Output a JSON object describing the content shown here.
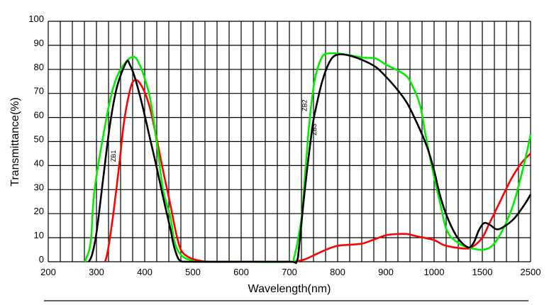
{
  "chart_data": {
    "type": "line",
    "title": "",
    "xlabel": "Wavelength(nm)",
    "ylabel": "Transmittance(%)",
    "xlim": [
      200,
      2500
    ],
    "ylim": [
      0,
      100
    ],
    "x_scale": "piecewise: linear 200-1000, compressed 1000-1500 and 1500-2500",
    "x_ticks": [
      200,
      300,
      400,
      500,
      600,
      700,
      800,
      900,
      1000,
      1500,
      2500
    ],
    "x_tick_labels": [
      "200",
      "300",
      "400",
      "500",
      "600",
      "700",
      "800",
      "900",
      "1000",
      "1500",
      "2500"
    ],
    "y_ticks": [
      0,
      10,
      20,
      30,
      40,
      50,
      60,
      70,
      80,
      90,
      100
    ],
    "y_tick_labels": [
      "0",
      "10",
      "20",
      "30",
      "40",
      "50",
      "60",
      "70",
      "80",
      "90",
      "100"
    ],
    "grid": true,
    "series": [
      {
        "name": "ZB1",
        "color": "#ff0000",
        "points": [
          [
            318,
            0
          ],
          [
            324,
            5
          ],
          [
            335,
            20
          ],
          [
            347,
            40
          ],
          [
            357,
            58
          ],
          [
            368,
            70
          ],
          [
            376,
            75
          ],
          [
            387,
            75
          ],
          [
            401,
            70
          ],
          [
            412,
            63
          ],
          [
            426,
            50
          ],
          [
            438,
            38
          ],
          [
            453,
            24
          ],
          [
            465,
            12
          ],
          [
            475,
            5
          ],
          [
            490,
            2
          ],
          [
            512,
            0.5
          ],
          [
            534,
            0
          ],
          [
            600,
            0
          ],
          [
            700,
            0
          ],
          [
            710,
            0
          ],
          [
            732,
            1
          ],
          [
            754,
            3
          ],
          [
            776,
            5
          ],
          [
            797,
            6.5
          ],
          [
            819,
            7
          ],
          [
            850,
            7.5
          ],
          [
            872,
            9
          ],
          [
            900,
            11
          ],
          [
            922,
            11.5
          ],
          [
            944,
            11.5
          ],
          [
            966,
            10.5
          ],
          [
            1000,
            9
          ],
          [
            1096,
            7
          ],
          [
            1206,
            6
          ],
          [
            1316,
            5.5
          ],
          [
            1390,
            6
          ],
          [
            1500,
            10
          ],
          [
            1647,
            16
          ],
          [
            1868,
            25
          ],
          [
            2088,
            34
          ],
          [
            2309,
            41
          ],
          [
            2500,
            45
          ]
        ]
      },
      {
        "name": "ZB2",
        "color": "#00ee00",
        "points": [
          [
            276,
            0
          ],
          [
            288,
            8
          ],
          [
            296,
            30
          ],
          [
            320,
            59
          ],
          [
            335,
            72.5
          ],
          [
            350,
            80
          ],
          [
            372,
            85
          ],
          [
            387,
            83
          ],
          [
            409,
            70
          ],
          [
            424,
            51
          ],
          [
            438,
            30
          ],
          [
            453,
            19
          ],
          [
            460,
            10
          ],
          [
            468,
            5
          ],
          [
            480,
            2
          ],
          [
            497,
            0.5
          ],
          [
            512,
            0
          ],
          [
            600,
            0
          ],
          [
            700,
            0
          ],
          [
            710,
            2
          ],
          [
            725,
            18
          ],
          [
            732,
            35
          ],
          [
            740,
            55
          ],
          [
            747,
            68
          ],
          [
            754,
            77
          ],
          [
            765,
            84
          ],
          [
            776,
            86.5
          ],
          [
            806,
            86.5
          ],
          [
            850,
            85
          ],
          [
            879,
            84.5
          ],
          [
            900,
            82
          ],
          [
            938,
            78
          ],
          [
            953,
            74
          ],
          [
            971,
            65
          ],
          [
            982,
            53
          ],
          [
            997,
            38
          ],
          [
            1059,
            25
          ],
          [
            1132,
            13
          ],
          [
            1243,
            8
          ],
          [
            1353,
            6
          ],
          [
            1500,
            5
          ],
          [
            1720,
            7
          ],
          [
            1941,
            14
          ],
          [
            2162,
            25
          ],
          [
            2382,
            42
          ],
          [
            2500,
            53
          ]
        ]
      },
      {
        "name": "ZB3",
        "color": "#000000",
        "points": [
          [
            284,
            0
          ],
          [
            291,
            3
          ],
          [
            300,
            12
          ],
          [
            313,
            33
          ],
          [
            328,
            57
          ],
          [
            343,
            73
          ],
          [
            362,
            83
          ],
          [
            369,
            82
          ],
          [
            379,
            77
          ],
          [
            394,
            66
          ],
          [
            409,
            53
          ],
          [
            424,
            40
          ],
          [
            438,
            27
          ],
          [
            453,
            14
          ],
          [
            460,
            7
          ],
          [
            468,
            2
          ],
          [
            475,
            0.3
          ],
          [
            490,
            0
          ],
          [
            600,
            0
          ],
          [
            700,
            0
          ],
          [
            715,
            0
          ],
          [
            721,
            8
          ],
          [
            732,
            30
          ],
          [
            747,
            55
          ],
          [
            754,
            63
          ],
          [
            768,
            75
          ],
          [
            783,
            83
          ],
          [
            797,
            86
          ],
          [
            819,
            86
          ],
          [
            850,
            84
          ],
          [
            879,
            81
          ],
          [
            900,
            77
          ],
          [
            922,
            72
          ],
          [
            944,
            66
          ],
          [
            966,
            57
          ],
          [
            985,
            48
          ],
          [
            1000,
            38
          ],
          [
            1059,
            28
          ],
          [
            1132,
            19
          ],
          [
            1243,
            10
          ],
          [
            1353,
            6
          ],
          [
            1412,
            8
          ],
          [
            1463,
            13
          ],
          [
            1529,
            16
          ],
          [
            1647,
            15.5
          ],
          [
            1794,
            13.5
          ],
          [
            1941,
            14.5
          ],
          [
            2162,
            18
          ],
          [
            2382,
            24
          ],
          [
            2500,
            28
          ]
        ]
      }
    ],
    "annotations": [
      {
        "text": "ZB1",
        "x": 340,
        "y": 44
      },
      {
        "text": "ZB2",
        "x": 736,
        "y": 65
      },
      {
        "text": "ZB3",
        "x": 756,
        "y": 55
      }
    ]
  }
}
